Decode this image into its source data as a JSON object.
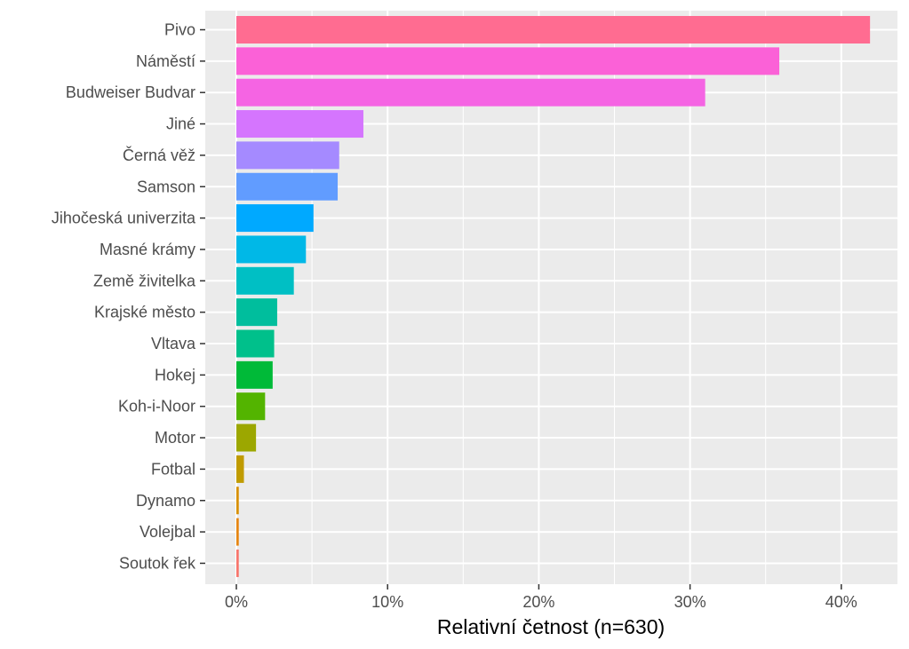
{
  "chart_data": {
    "type": "bar",
    "orientation": "horizontal",
    "xlabel": "Relativní četnost (n=630)",
    "ylabel": "",
    "xlim": [
      0,
      0.435
    ],
    "xticks": [
      0,
      0.1,
      0.2,
      0.3,
      0.4
    ],
    "xtick_labels": [
      "0%",
      "10%",
      "20%",
      "30%",
      "40%"
    ],
    "grid": true,
    "legend": "none",
    "categories": [
      "Pivo",
      "Náměstí",
      "Budweiser Budvar",
      "Jiné",
      "Černá věž",
      "Samson",
      "Jihočeská univerzita",
      "Masné krámy",
      "Země živitelka",
      "Krajské město",
      "Vltava",
      "Hokej",
      "Koh-i-Noor",
      "Motor",
      "Fotbal",
      "Dynamo",
      "Volejbal",
      "Soutok řek"
    ],
    "values": [
      0.419,
      0.359,
      0.31,
      0.084,
      0.068,
      0.067,
      0.051,
      0.046,
      0.038,
      0.027,
      0.025,
      0.024,
      0.019,
      0.013,
      0.005,
      0.0016,
      0.0016,
      0.0016
    ],
    "colors": [
      "#FF6C91",
      "#FB61D7",
      "#F564E3",
      "#D575FE",
      "#A58AFF",
      "#619CFF",
      "#00A9FF",
      "#00B8E7",
      "#00BFC4",
      "#00BE9D",
      "#00C08B",
      "#00BA38",
      "#53B400",
      "#9CA700",
      "#C09B00",
      "#D89000",
      "#E68613",
      "#F8766D"
    ],
    "panel_background": "#EBEBEB",
    "grid_color": "#FFFFFF"
  }
}
